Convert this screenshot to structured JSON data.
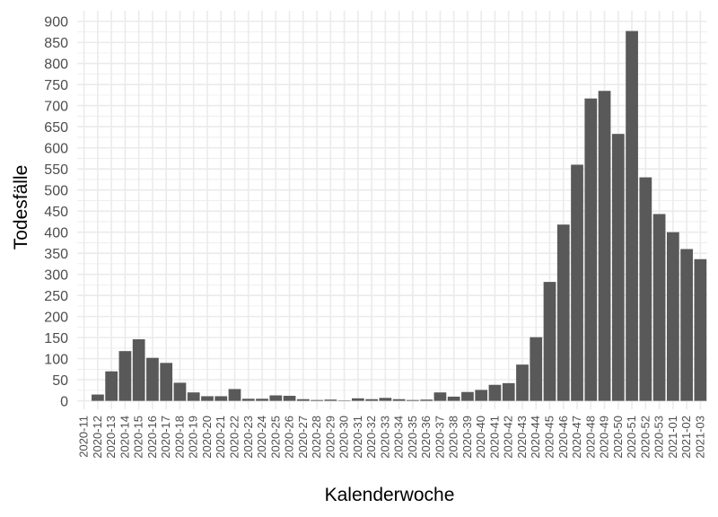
{
  "chart_data": {
    "type": "bar",
    "xlabel": "Kalenderwoche",
    "ylabel": "Todesfälle",
    "ylim": [
      -20,
      925
    ],
    "yticks": [
      0,
      50,
      100,
      150,
      200,
      250,
      300,
      350,
      400,
      450,
      500,
      550,
      600,
      650,
      700,
      750,
      800,
      850,
      900
    ],
    "grid": true,
    "bar_color": "#595959",
    "grid_color": "#ebebeb",
    "categories": [
      "2020-11",
      "2020-12",
      "2020-13",
      "2020-14",
      "2020-15",
      "2020-16",
      "2020-17",
      "2020-18",
      "2020-19",
      "2020-20",
      "2020-21",
      "2020-22",
      "2020-23",
      "2020-24",
      "2020-25",
      "2020-26",
      "2020-27",
      "2020-28",
      "2020-29",
      "2020-30",
      "2020-31",
      "2020-32",
      "2020-33",
      "2020-34",
      "2020-35",
      "2020-36",
      "2020-37",
      "2020-38",
      "2020-39",
      "2020-40",
      "2020-41",
      "2020-42",
      "2020-43",
      "2020-44",
      "2020-45",
      "2020-46",
      "2020-47",
      "2020-48",
      "2020-49",
      "2020-50",
      "2020-51",
      "2020-52",
      "2020-53",
      "2021-01",
      "2021-02",
      "2021-03"
    ],
    "values": [
      0,
      15,
      70,
      118,
      146,
      102,
      90,
      43,
      20,
      11,
      11,
      28,
      5,
      5,
      13,
      12,
      4,
      2,
      3,
      1,
      6,
      4,
      7,
      4,
      2,
      3,
      20,
      10,
      21,
      26,
      38,
      42,
      86,
      151,
      282,
      418,
      560,
      717,
      735,
      633,
      877,
      530,
      443,
      400,
      360,
      336
    ]
  }
}
